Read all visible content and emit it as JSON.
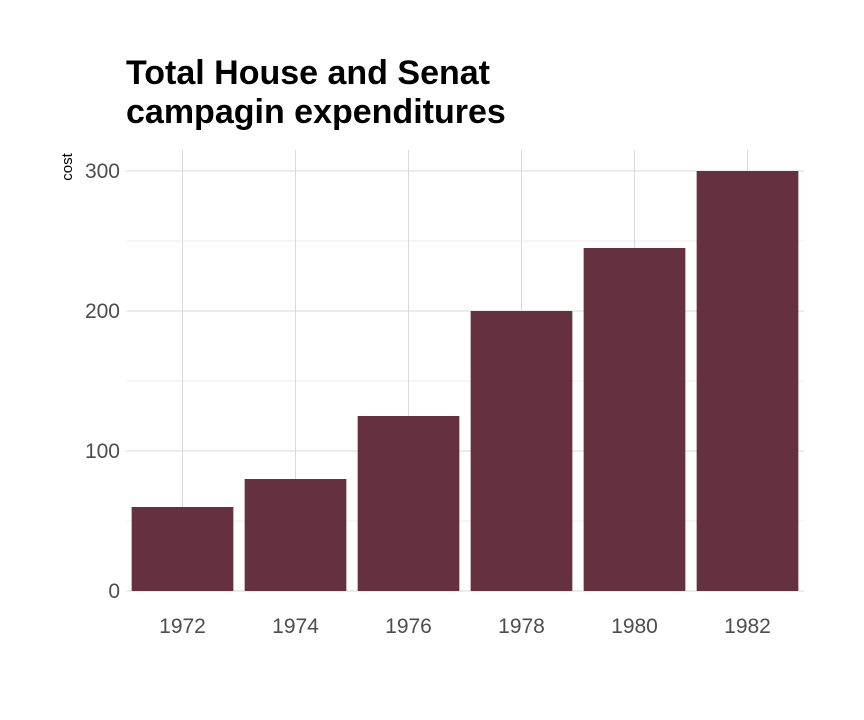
{
  "chart_data": {
    "type": "bar",
    "title_lines": [
      "Total House and Senat",
      "campagin expenditures"
    ],
    "xlabel": "",
    "ylabel": "cost",
    "categories": [
      "1972",
      "1974",
      "1976",
      "1978",
      "1980",
      "1982"
    ],
    "values": [
      60,
      80,
      125,
      200,
      245,
      300
    ],
    "ylim": [
      0,
      300
    ],
    "yticks": [
      0,
      100,
      200,
      300
    ],
    "grid": true,
    "bar_color": "#65303f",
    "grid_color": "#d9d9d9"
  }
}
